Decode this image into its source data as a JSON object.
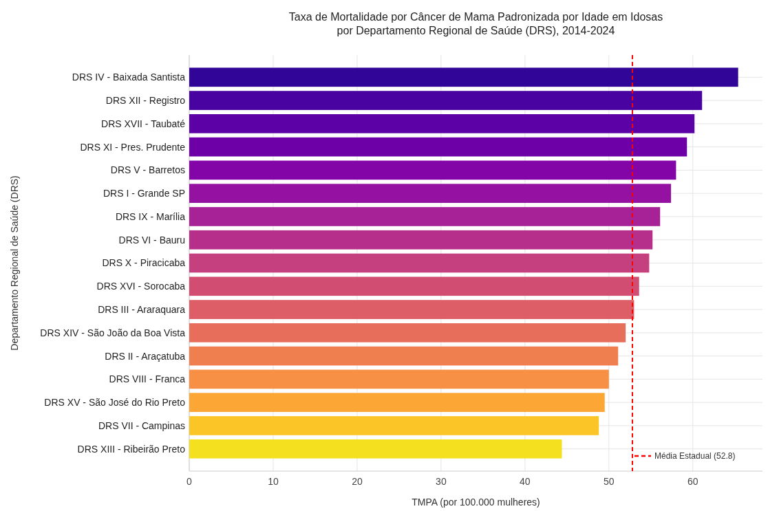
{
  "chart_data": {
    "type": "bar",
    "orientation": "horizontal",
    "title": "Taxa de Mortalidade por Câncer de Mama Padronizada por Idade em Idosas\npor Departamento Regional de Saúde (DRS), 2014-2024",
    "xlabel": "TMPA (por 100.000 mulheres)",
    "ylabel": "Departamento Regional de Saúde (DRS)",
    "categories": [
      "DRS IV - Baixada Santista",
      "DRS XII - Registro",
      "DRS XVII - Taubaté",
      "DRS XI - Pres. Prudente",
      "DRS V - Barretos",
      "DRS I - Grande SP",
      "DRS IX - Marília",
      "DRS VI - Bauru",
      "DRS X - Piracicaba",
      "DRS XVI - Sorocaba",
      "DRS III - Araraquara",
      "DRS XIV - São João da Boa Vista",
      "DRS II - Araçatuba",
      "DRS VIII - Franca",
      "DRS XV - São José do Rio Preto",
      "DRS VII - Campinas",
      "DRS XIII - Ribeirão Preto"
    ],
    "values": [
      65.4,
      61.1,
      60.2,
      59.3,
      58.0,
      57.4,
      56.1,
      55.2,
      54.8,
      53.6,
      53.0,
      52.0,
      51.1,
      50.0,
      49.5,
      48.8,
      44.4
    ],
    "colors": [
      "#310597",
      "#4903a0",
      "#5c01a6",
      "#6e00a8",
      "#8405a7",
      "#9511a1",
      "#a72197",
      "#b6308b",
      "#c5407e",
      "#d14e72",
      "#dd5e66",
      "#e76e5b",
      "#f07f4f",
      "#f79044",
      "#fca636",
      "#fcc527",
      "#f5e01f"
    ],
    "xlim": [
      0,
      68.3
    ],
    "xticks": [
      0,
      10,
      20,
      30,
      40,
      50,
      60
    ],
    "ref_lines": [
      {
        "axis": "x",
        "value": 52.8,
        "label": "Média Estadual (52.8)",
        "color": "#ff0000",
        "line_style": "dashed"
      }
    ],
    "grid": true,
    "legend": "bottom right"
  }
}
